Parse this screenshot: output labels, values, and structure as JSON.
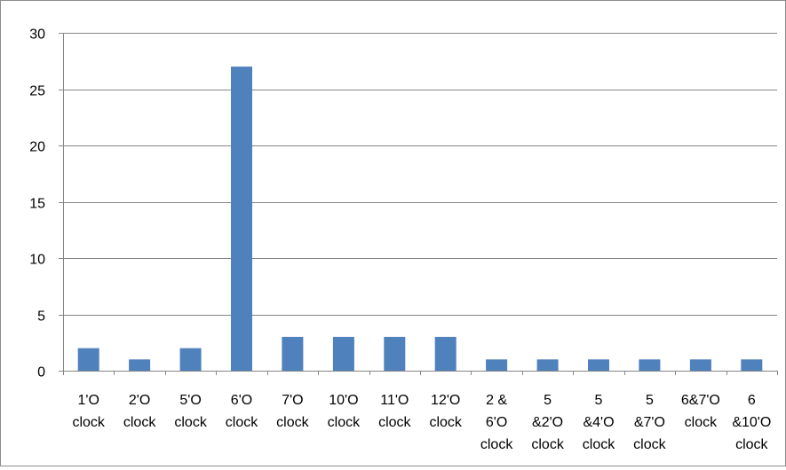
{
  "chart_data": {
    "type": "bar",
    "categories": [
      [
        "1'O",
        "clock"
      ],
      [
        "2'O",
        "clock"
      ],
      [
        "5'O",
        "clock"
      ],
      [
        "6'O",
        "clock"
      ],
      [
        "7'O",
        "clock"
      ],
      [
        "10'O",
        "clock"
      ],
      [
        "11'O",
        "clock"
      ],
      [
        "12'O",
        "clock"
      ],
      [
        "2 &",
        "6'O",
        "clock"
      ],
      [
        "5",
        "&2'O",
        "clock"
      ],
      [
        "5",
        "&4'O",
        "clock"
      ],
      [
        "5",
        "&7'O",
        "clock"
      ],
      [
        "6&7'O",
        "clock"
      ],
      [
        "6",
        "&10'O",
        "clock"
      ]
    ],
    "values": [
      2,
      1,
      2,
      27,
      3,
      3,
      3,
      3,
      1,
      1,
      1,
      1,
      1,
      1
    ],
    "title": "",
    "xlabel": "",
    "ylabel": "",
    "ylim": [
      0,
      30
    ],
    "yticks": [
      0,
      5,
      10,
      15,
      20,
      25,
      30
    ],
    "grid": true,
    "legend": "none",
    "colors": {
      "bar": "#4f81bd",
      "grid": "#868686",
      "axis": "#868686",
      "frame": "#8c8c8c"
    }
  }
}
